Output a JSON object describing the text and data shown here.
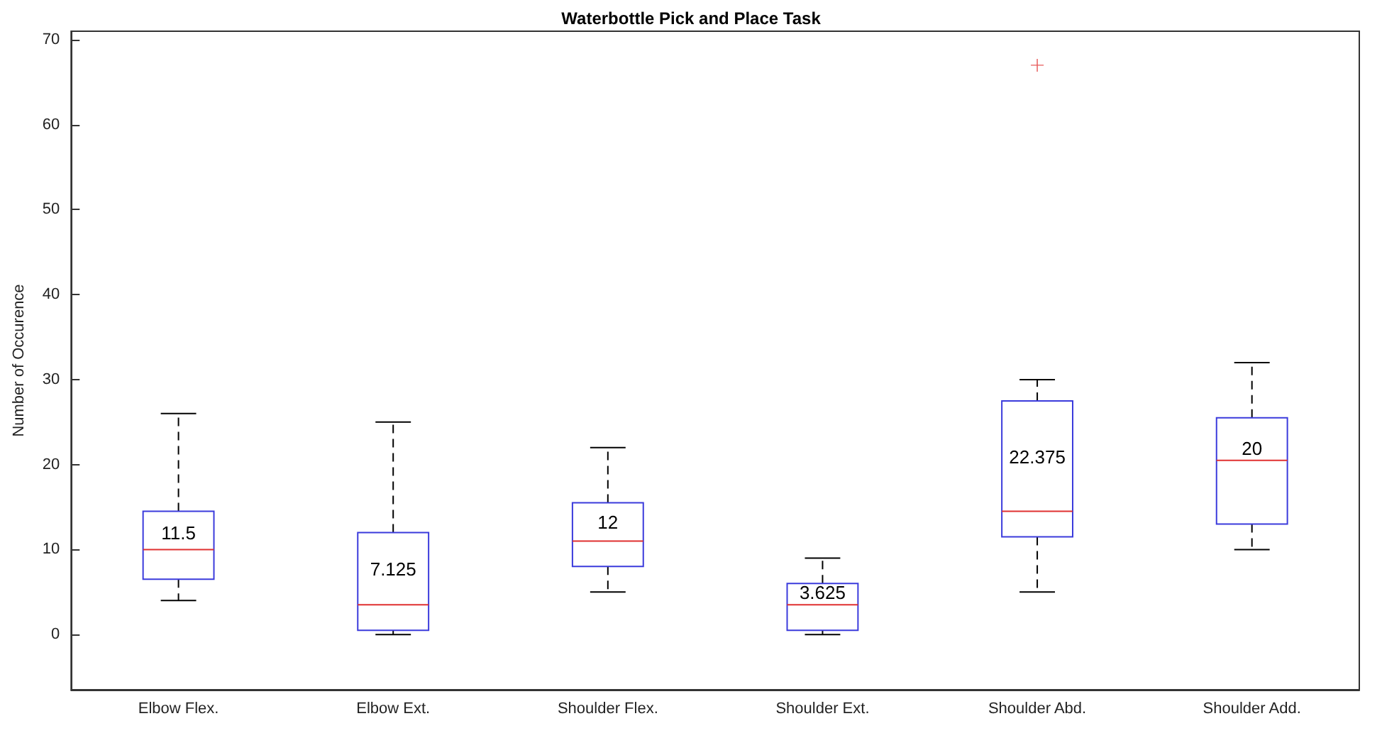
{
  "chart_data": {
    "type": "box",
    "title": "Waterbottle Pick and Place Task",
    "ylabel": "Number of Occurence",
    "categories": [
      "Elbow Flex.",
      "Elbow Ext.",
      "Shoulder Flex.",
      "Shoulder Ext.",
      "Shoulder Abd.",
      "Shoulder Add."
    ],
    "series": [
      {
        "color": "#3b3bdc",
        "boxes": [
          {
            "low": 4,
            "q1": 6.5,
            "median": 10,
            "q3": 14.5,
            "high": 26
          },
          {
            "low": 0,
            "q1": 0.5,
            "median": 3.5,
            "q3": 12,
            "high": 25
          },
          {
            "low": 5,
            "q1": 8,
            "median": 11,
            "q3": 15.5,
            "high": 22
          },
          {
            "low": 0,
            "q1": 0.5,
            "median": 3.5,
            "q3": 6,
            "high": 9
          },
          {
            "low": 5,
            "q1": 11.5,
            "median": 14.5,
            "q3": 27.5,
            "high": 30,
            "outliers": [
              67
            ]
          },
          {
            "low": 10,
            "q1": 13,
            "median": 20.5,
            "q3": 25.5,
            "high": 32
          }
        ]
      }
    ],
    "ylim": [
      -6.5,
      71
    ],
    "yticks": [
      0,
      10,
      20,
      30,
      40,
      50,
      60,
      70
    ],
    "grid": false,
    "annotations": [
      "11.5",
      "7.125",
      "12",
      "3.625",
      "22.375",
      "20"
    ]
  }
}
